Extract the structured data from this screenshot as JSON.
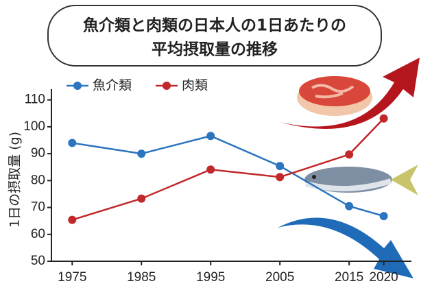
{
  "chart_data": {
    "type": "line",
    "title": [
      "魚介類と肉類の日本人の1日あたりの",
      "平均摂取量の推移"
    ],
    "y_label": "1日の摂取量 (g)",
    "x": [
      1975,
      1985,
      1995,
      2005,
      2015,
      2020
    ],
    "series": [
      {
        "name": "魚介類",
        "color": "#2b74c0",
        "values": [
          94,
          90,
          96.6,
          85.4,
          70.5,
          66.8
        ]
      },
      {
        "name": "肉類",
        "color": "#c0282a",
        "values": [
          65.4,
          73.3,
          84.1,
          81.3,
          89.7,
          103.1
        ]
      }
    ],
    "xlim": [
      1972,
      2024
    ],
    "xticks": [
      1975,
      1985,
      1995,
      2005,
      2015,
      2020
    ],
    "ylim": [
      50,
      114
    ],
    "yticks": [
      50,
      60,
      70,
      80,
      90,
      100,
      110
    ],
    "legend": "top-left"
  }
}
